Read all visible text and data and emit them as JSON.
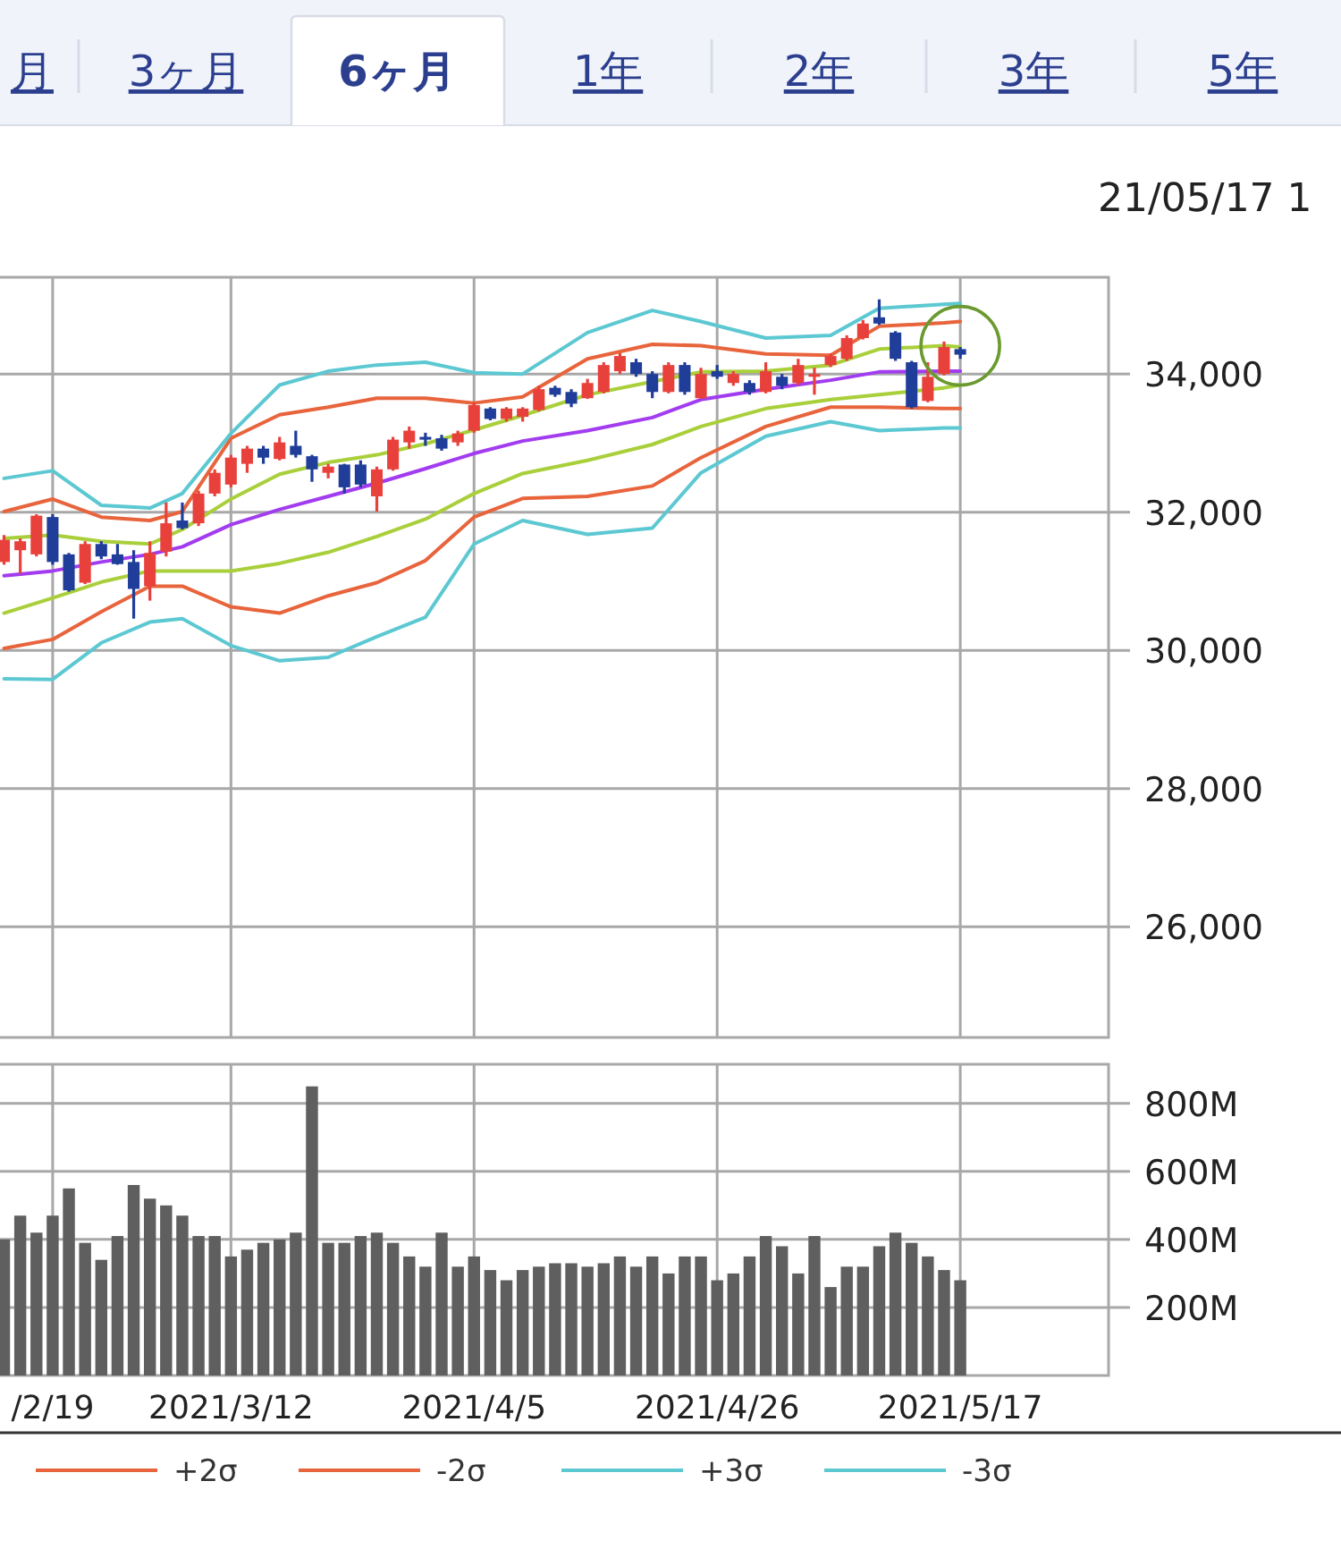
{
  "chart_data": [
    {
      "type": "candlestick",
      "categories": [
        null,
        null,
        null,
        null,
        null,
        null,
        null,
        null,
        null,
        null,
        null,
        null,
        null,
        null,
        null,
        null,
        null,
        null,
        null,
        null,
        null,
        null,
        null,
        null,
        null,
        null,
        null,
        null,
        null,
        null,
        null,
        null,
        null,
        null,
        null,
        null,
        null,
        null,
        null,
        null,
        null,
        null,
        null,
        null,
        null,
        null,
        null,
        null,
        null,
        null,
        null,
        null,
        null,
        null,
        null,
        null,
        null,
        null,
        null,
        null
      ],
      "ohlc": [
        [
          31280,
          31670,
          31240,
          31600
        ],
        [
          31450,
          31620,
          31110,
          31580
        ],
        [
          31390,
          31970,
          31360,
          31950
        ],
        [
          31930,
          31970,
          31240,
          31280
        ],
        [
          31390,
          31410,
          30850,
          30870
        ],
        [
          30980,
          31580,
          30960,
          31540
        ],
        [
          31540,
          31580,
          31320,
          31360
        ],
        [
          31390,
          31540,
          31240,
          31250
        ],
        [
          31280,
          31450,
          30460,
          30890
        ],
        [
          30930,
          31580,
          30720,
          31410
        ],
        [
          31430,
          32140,
          31360,
          31840
        ],
        [
          31880,
          32140,
          31750,
          31770
        ],
        [
          31840,
          32310,
          31800,
          32270
        ],
        [
          32270,
          32620,
          32230,
          32570
        ],
        [
          32400,
          32830,
          32360,
          32790
        ],
        [
          32700,
          32960,
          32570,
          32920
        ],
        [
          32920,
          32960,
          32700,
          32790
        ],
        [
          32770,
          33090,
          32750,
          33010
        ],
        [
          32960,
          33180,
          32790,
          32830
        ],
        [
          32810,
          32830,
          32440,
          32620
        ],
        [
          32570,
          32700,
          32490,
          32660
        ],
        [
          32690,
          32700,
          32270,
          32360
        ],
        [
          32690,
          32750,
          32360,
          32400
        ],
        [
          32230,
          32660,
          32010,
          32620
        ],
        [
          32620,
          33090,
          32600,
          33050
        ],
        [
          33010,
          33240,
          32920,
          33180
        ],
        [
          33090,
          33150,
          32960,
          33050
        ],
        [
          33070,
          33120,
          32890,
          32920
        ],
        [
          33010,
          33180,
          32960,
          33140
        ],
        [
          33180,
          33590,
          33150,
          33550
        ],
        [
          33500,
          33520,
          33330,
          33350
        ],
        [
          33350,
          33520,
          33310,
          33500
        ],
        [
          33380,
          33520,
          33310,
          33500
        ],
        [
          33480,
          33830,
          33460,
          33780
        ],
        [
          33800,
          33830,
          33670,
          33700
        ],
        [
          33740,
          33780,
          33520,
          33570
        ],
        [
          33650,
          33930,
          33640,
          33870
        ],
        [
          33740,
          34170,
          33720,
          34130
        ],
        [
          34040,
          34300,
          34000,
          34260
        ],
        [
          34170,
          34220,
          33960,
          34000
        ],
        [
          34000,
          34040,
          33650,
          33740
        ],
        [
          33740,
          34170,
          33720,
          34130
        ],
        [
          34130,
          34170,
          33700,
          33740
        ],
        [
          33650,
          34090,
          33640,
          34000
        ],
        [
          34040,
          34130,
          33930,
          33960
        ],
        [
          33870,
          34040,
          33830,
          34000
        ],
        [
          33870,
          33910,
          33700,
          33740
        ],
        [
          33740,
          34170,
          33720,
          34040
        ],
        [
          33960,
          34000,
          33780,
          33830
        ],
        [
          33870,
          34220,
          33840,
          34130
        ],
        [
          33960,
          34090,
          33700,
          34000
        ],
        [
          34130,
          34300,
          34100,
          34260
        ],
        [
          34220,
          34560,
          34190,
          34520
        ],
        [
          34520,
          34780,
          34500,
          34730
        ],
        [
          34820,
          35080,
          34710,
          34730
        ],
        [
          34600,
          34620,
          34190,
          34220
        ],
        [
          34170,
          34190,
          33500,
          33520
        ],
        [
          33610,
          34170,
          33590,
          33960
        ],
        [
          34000,
          34470,
          33980,
          34390
        ],
        [
          34360,
          34390,
          34220,
          34280
        ]
      ],
      "colors": [
        "#e8413c",
        "#e8413c",
        "#e8413c",
        "#1f3d99",
        "#1f3d99",
        "#e8413c",
        "#1f3d99",
        "#1f3d99",
        "#1f3d99",
        "#e8413c",
        "#e8413c",
        "#1f3d99",
        "#e8413c",
        "#e8413c",
        "#e8413c",
        "#e8413c",
        "#1f3d99",
        "#e8413c",
        "#1f3d99",
        "#1f3d99",
        "#e8413c",
        "#1f3d99",
        "#1f3d99",
        "#e8413c",
        "#e8413c",
        "#e8413c",
        "#1f3d99",
        "#1f3d99",
        "#e8413c",
        "#e8413c",
        "#1f3d99",
        "#e8413c",
        "#e8413c",
        "#e8413c",
        "#1f3d99",
        "#1f3d99",
        "#e8413c",
        "#e8413c",
        "#e8413c",
        "#1f3d99",
        "#1f3d99",
        "#e8413c",
        "#1f3d99",
        "#e8413c",
        "#1f3d99",
        "#e8413c",
        "#1f3d99",
        "#e8413c",
        "#1f3d99",
        "#e8413c",
        "#e8413c",
        "#e8413c",
        "#e8413c",
        "#e8413c",
        "#1f3d99",
        "#1f3d99",
        "#1f3d99",
        "#e8413c",
        "#e8413c",
        "#1f3d99"
      ],
      "series": [
        {
          "type": "line",
          "color": "#a23cf0",
          "values": [
            31080,
            null,
            null,
            31150,
            null,
            null,
            31280,
            null,
            null,
            31390,
            null,
            31500,
            null,
            null,
            31820,
            null,
            null,
            32040,
            null,
            null,
            32230,
            null,
            null,
            32420,
            null,
            null,
            32630,
            null,
            null,
            32850,
            null,
            null,
            33030,
            null,
            null,
            null,
            33180,
            null,
            null,
            null,
            33370,
            null,
            null,
            33630,
            null,
            null,
            null,
            33780,
            null,
            null,
            null,
            33910,
            null,
            null,
            34030,
            null,
            null,
            null,
            34040,
            34040
          ]
        },
        {
          "type": "line",
          "color": "#a9cf3a",
          "values": [
            31620,
            null,
            null,
            31670,
            null,
            null,
            31580,
            null,
            null,
            31540,
            null,
            31750,
            null,
            null,
            32190,
            null,
            null,
            32550,
            null,
            null,
            32720,
            null,
            null,
            32830,
            null,
            null,
            32990,
            null,
            null,
            33190,
            null,
            null,
            33400,
            null,
            null,
            null,
            33700,
            null,
            null,
            null,
            33890,
            null,
            null,
            34030,
            null,
            null,
            null,
            34040,
            null,
            null,
            null,
            34130,
            null,
            null,
            34360,
            null,
            null,
            null,
            34410,
            34390
          ]
        },
        {
          "type": "line",
          "color": "#a9cf3a",
          "values": [
            30540,
            null,
            null,
            30760,
            null,
            null,
            30990,
            null,
            null,
            31150,
            null,
            31150,
            null,
            null,
            31150,
            null,
            null,
            31260,
            null,
            null,
            31420,
            null,
            null,
            31650,
            null,
            null,
            31900,
            null,
            null,
            32270,
            null,
            null,
            32560,
            null,
            null,
            null,
            32750,
            null,
            null,
            null,
            32980,
            null,
            null,
            33240,
            null,
            null,
            null,
            33500,
            null,
            null,
            null,
            33630,
            null,
            null,
            33700,
            null,
            null,
            null,
            33800,
            33840
          ]
        },
        {
          "type": "line",
          "name": "+2σ",
          "color": "#e8643c",
          "values": [
            32010,
            null,
            null,
            32190,
            null,
            null,
            31930,
            null,
            null,
            31880,
            null,
            32010,
            null,
            null,
            33070,
            null,
            null,
            33410,
            null,
            null,
            33520,
            null,
            null,
            33650,
            null,
            null,
            33650,
            null,
            null,
            33580,
            null,
            null,
            33670,
            null,
            null,
            null,
            34220,
            null,
            null,
            null,
            34430,
            null,
            null,
            34410,
            null,
            null,
            null,
            34290,
            null,
            null,
            null,
            34270,
            null,
            null,
            34690,
            null,
            null,
            null,
            34740,
            34760
          ]
        },
        {
          "type": "line",
          "name": "-2σ",
          "color": "#e8643c",
          "values": [
            30030,
            null,
            null,
            30160,
            null,
            null,
            30560,
            null,
            null,
            30930,
            null,
            30930,
            null,
            null,
            30630,
            null,
            null,
            30540,
            null,
            null,
            30790,
            null,
            null,
            30980,
            null,
            null,
            31300,
            null,
            null,
            31930,
            null,
            null,
            32200,
            null,
            null,
            null,
            32230,
            null,
            null,
            null,
            32380,
            null,
            null,
            32790,
            null,
            null,
            null,
            33240,
            null,
            null,
            null,
            33520,
            null,
            null,
            33520,
            null,
            null,
            null,
            33500,
            33500
          ]
        },
        {
          "type": "line",
          "name": "+3σ",
          "color": "#5cc8d2",
          "values": [
            32490,
            null,
            null,
            32600,
            null,
            null,
            32100,
            null,
            null,
            32060,
            null,
            32270,
            null,
            null,
            33140,
            null,
            null,
            33840,
            null,
            null,
            34040,
            null,
            null,
            34130,
            null,
            null,
            34170,
            null,
            null,
            34020,
            null,
            null,
            34000,
            null,
            null,
            null,
            34600,
            null,
            null,
            null,
            34920,
            null,
            null,
            34760,
            null,
            null,
            null,
            34520,
            null,
            null,
            null,
            34560,
            null,
            null,
            34950,
            null,
            null,
            null,
            35010,
            35020
          ]
        },
        {
          "type": "line",
          "name": "-3σ",
          "color": "#5cc8d2",
          "values": [
            29590,
            null,
            null,
            29580,
            null,
            null,
            30110,
            null,
            null,
            30410,
            null,
            30460,
            null,
            null,
            30070,
            null,
            null,
            29850,
            null,
            null,
            29900,
            null,
            null,
            30200,
            null,
            null,
            30480,
            null,
            null,
            31540,
            null,
            null,
            31880,
            null,
            null,
            null,
            31680,
            null,
            null,
            null,
            31770,
            null,
            null,
            32570,
            null,
            null,
            null,
            33100,
            null,
            null,
            null,
            33310,
            null,
            null,
            33180,
            null,
            null,
            null,
            33220,
            33220
          ]
        }
      ],
      "ylim": [
        24400,
        35400
      ],
      "yticks": [
        {
          "value": 26000,
          "label": "26,000"
        },
        {
          "value": 28000,
          "label": "28,000"
        },
        {
          "value": 30000,
          "label": "30,000"
        },
        {
          "value": 32000,
          "label": "32,000"
        },
        {
          "value": 34000,
          "label": "34,000"
        }
      ],
      "grid": true,
      "legend": "bottom",
      "tick_labels": "y",
      "annotations": [
        "月",
        "3ヶ月",
        "6ヶ月",
        "1年",
        "2年",
        "3年",
        "5年",
        "21/05/17 1"
      ]
    },
    {
      "type": "bar",
      "categories": [
        null,
        null,
        null,
        "/2/19",
        null,
        null,
        null,
        null,
        null,
        null,
        null,
        null,
        null,
        null,
        "2021/3/12",
        null,
        null,
        null,
        null,
        null,
        null,
        null,
        null,
        null,
        null,
        null,
        null,
        null,
        null,
        "2021/4/5",
        null,
        null,
        null,
        null,
        null,
        null,
        null,
        null,
        null,
        null,
        null,
        null,
        null,
        null,
        "2021/4/26",
        null,
        null,
        null,
        null,
        null,
        null,
        null,
        null,
        null,
        null,
        null,
        null,
        null,
        null,
        "2021/5/17"
      ],
      "values": [
        400,
        470,
        420,
        470,
        550,
        390,
        340,
        410,
        560,
        520,
        500,
        470,
        410,
        410,
        350,
        370,
        390,
        400,
        420,
        850,
        390,
        390,
        410,
        420,
        390,
        350,
        320,
        420,
        320,
        350,
        310,
        280,
        310,
        320,
        330,
        330,
        320,
        330,
        350,
        320,
        350,
        300,
        350,
        350,
        280,
        300,
        350,
        410,
        380,
        300,
        410,
        260,
        320,
        320,
        380,
        420,
        390,
        350,
        310,
        280
      ],
      "color": "#5f5f5f",
      "ylim": [
        0,
        915
      ],
      "yticks": [
        {
          "value": 200,
          "label": "200M"
        },
        {
          "value": 400,
          "label": "400M"
        },
        {
          "value": 600,
          "label": "600M"
        },
        {
          "value": 800,
          "label": "800M"
        }
      ],
      "grid": true
    }
  ]
}
